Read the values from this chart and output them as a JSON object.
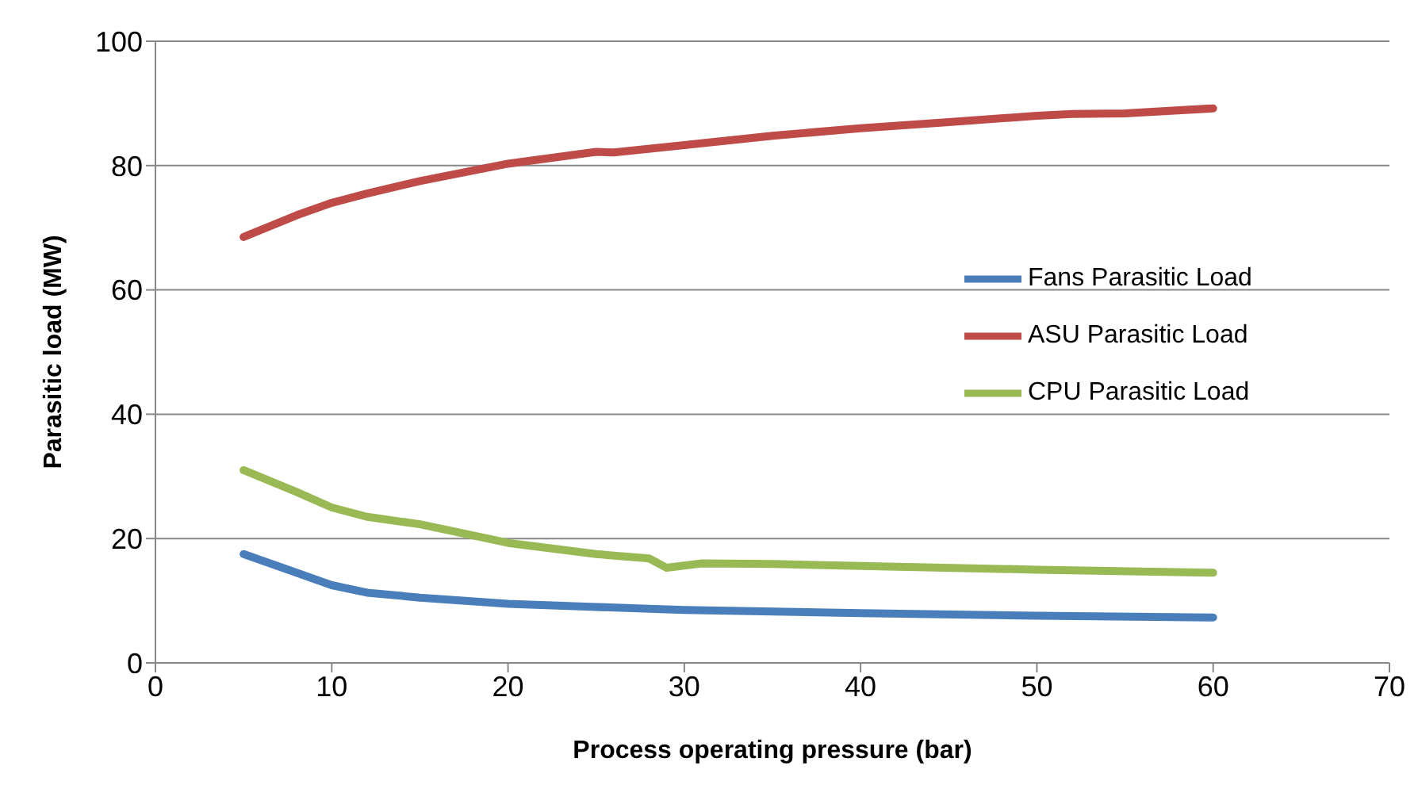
{
  "chart_data": {
    "type": "line",
    "xlabel": "Process operating pressure (bar)",
    "ylabel": "Parasitic load (MW)",
    "xlim": [
      0,
      70
    ],
    "xticks": [
      0,
      10,
      20,
      30,
      40,
      50,
      60,
      70
    ],
    "ylim": [
      0,
      100
    ],
    "yticks": [
      0,
      20,
      40,
      60,
      80,
      100
    ],
    "grid": "y",
    "legend": "right",
    "marker": "none",
    "line_style": "solid",
    "series": [
      {
        "name": "Fans Parasitic Load",
        "color": "#4a7ebb",
        "x": [
          5,
          8,
          10,
          12,
          15,
          20,
          25,
          30,
          40,
          50,
          60
        ],
        "values": [
          17.5,
          14.5,
          12.5,
          11.3,
          10.5,
          9.5,
          9,
          8.5,
          8,
          7.6,
          7.3
        ]
      },
      {
        "name": "ASU Parasitic Load",
        "color": "#be4b48",
        "x": [
          5,
          8,
          10,
          12,
          15,
          20,
          25,
          26,
          30,
          35,
          40,
          45,
          50,
          52,
          55,
          60
        ],
        "values": [
          68.5,
          72,
          74,
          75.5,
          77.5,
          80.3,
          82.2,
          82.1,
          83.3,
          84.8,
          86,
          87,
          88,
          88.3,
          88.4,
          89.2
        ]
      },
      {
        "name": "CPU Parasitic Load",
        "color": "#98b954",
        "x": [
          5,
          8,
          10,
          12,
          15,
          20,
          25,
          28,
          29,
          31,
          35,
          40,
          50,
          60
        ],
        "values": [
          31,
          27.5,
          25,
          23.5,
          22.3,
          19.3,
          17.5,
          16.8,
          15.3,
          16,
          15.9,
          15.6,
          15,
          14.5
        ]
      }
    ]
  }
}
